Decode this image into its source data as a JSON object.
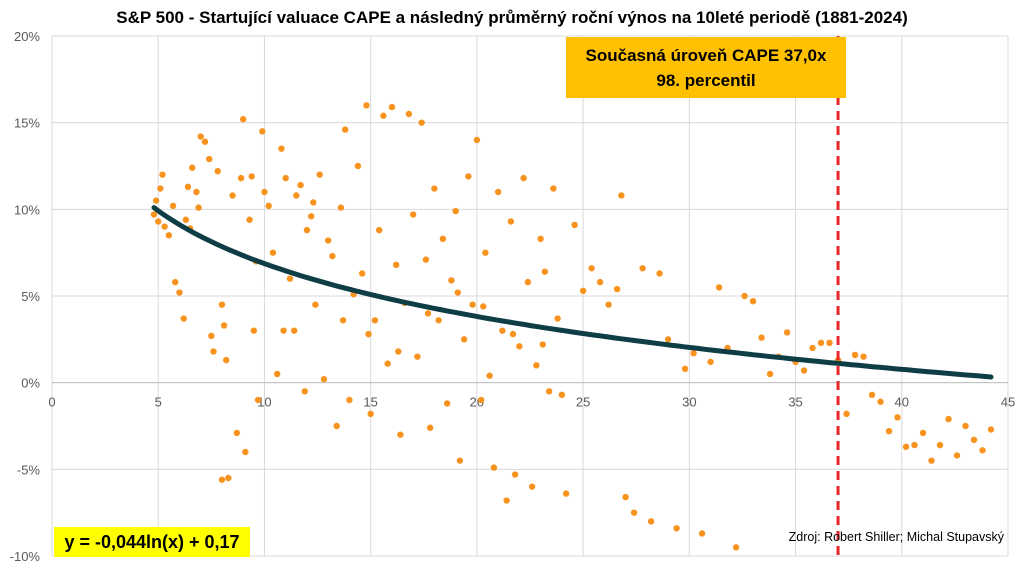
{
  "chart_data": {
    "type": "scatter",
    "title": "S&P 500 - Startující valuace CAPE a následný průměrný roční výnos na 10leté periodě (1881-2024)",
    "xlim": [
      0,
      45
    ],
    "ylim": [
      -0.1,
      0.2
    ],
    "x_ticks": [
      0,
      5,
      10,
      15,
      20,
      25,
      30,
      35,
      40,
      45
    ],
    "x_tick_labels": [
      "0",
      "5",
      "10",
      "15",
      "20",
      "25",
      "30",
      "35",
      "40",
      "45"
    ],
    "y_ticks": [
      -0.1,
      -0.05,
      0.0,
      0.05,
      0.1,
      0.15,
      0.2
    ],
    "y_tick_labels": [
      "-10%",
      "-5%",
      "0%",
      "5%",
      "10%",
      "15%",
      "20%"
    ],
    "grid": "vertical and horizontal gridlines",
    "colors": {
      "points": "#f7931e",
      "trendline": "#0f3d46",
      "current_line": "#e8262b",
      "annotation_bg": "#ffc000",
      "equation_bg": "#ffff00",
      "grid": "#d9d9d9"
    },
    "trendline": {
      "formula": "y = -0,044ln(x) + 0,17",
      "a": -0.044,
      "b": 0.17,
      "x_range": [
        4.8,
        44.2
      ]
    },
    "current_value": {
      "x": 37.0,
      "label_line1": "Současná úroveň CAPE 37,0x",
      "label_line2": "98. percentil"
    },
    "equation_label": "y = -0,044ln(x) + 0,17",
    "source": "Zdroj: Robert Shiller; Michal Stupavský",
    "series": [
      {
        "points": [
          [
            4.8,
            0.097
          ],
          [
            4.9,
            0.105
          ],
          [
            5.0,
            0.093
          ],
          [
            5.1,
            0.112
          ],
          [
            5.2,
            0.12
          ],
          [
            5.3,
            0.09
          ],
          [
            5.5,
            0.085
          ],
          [
            5.7,
            0.102
          ],
          [
            5.8,
            0.058
          ],
          [
            6.0,
            0.052
          ],
          [
            6.2,
            0.037
          ],
          [
            6.3,
            0.094
          ],
          [
            6.4,
            0.113
          ],
          [
            6.5,
            0.089
          ],
          [
            6.6,
            0.124
          ],
          [
            6.8,
            0.11
          ],
          [
            6.9,
            0.101
          ],
          [
            7.0,
            0.142
          ],
          [
            7.2,
            0.139
          ],
          [
            7.4,
            0.129
          ],
          [
            7.5,
            0.027
          ],
          [
            7.6,
            0.018
          ],
          [
            7.8,
            0.122
          ],
          [
            8.0,
            0.045
          ],
          [
            8.0,
            -0.056
          ],
          [
            8.2,
            0.013
          ],
          [
            8.3,
            -0.055
          ],
          [
            8.5,
            0.108
          ],
          [
            8.7,
            -0.029
          ],
          [
            8.9,
            0.118
          ],
          [
            9.0,
            0.152
          ],
          [
            9.1,
            -0.04
          ],
          [
            9.3,
            0.094
          ],
          [
            9.5,
            0.03
          ],
          [
            9.6,
            0.07
          ],
          [
            9.7,
            -0.01
          ],
          [
            9.9,
            0.145
          ],
          [
            10.0,
            0.11
          ],
          [
            10.2,
            0.102
          ],
          [
            10.4,
            0.075
          ],
          [
            10.6,
            0.005
          ],
          [
            10.8,
            0.135
          ],
          [
            11.0,
            0.118
          ],
          [
            11.2,
            0.06
          ],
          [
            11.4,
            0.03
          ],
          [
            11.5,
            0.108
          ],
          [
            11.7,
            0.114
          ],
          [
            11.9,
            -0.005
          ],
          [
            12.0,
            0.088
          ],
          [
            12.2,
            0.096
          ],
          [
            12.4,
            0.045
          ],
          [
            12.6,
            0.12
          ],
          [
            12.8,
            0.002
          ],
          [
            13.0,
            0.082
          ],
          [
            13.2,
            0.073
          ],
          [
            13.4,
            -0.025
          ],
          [
            13.6,
            0.101
          ],
          [
            13.8,
            0.146
          ],
          [
            14.0,
            -0.01
          ],
          [
            14.2,
            0.051
          ],
          [
            14.4,
            0.125
          ],
          [
            14.6,
            0.063
          ],
          [
            14.8,
            0.16
          ],
          [
            15.0,
            -0.018
          ],
          [
            15.2,
            0.036
          ],
          [
            15.4,
            0.088
          ],
          [
            15.6,
            0.154
          ],
          [
            15.8,
            0.011
          ],
          [
            16.0,
            0.159
          ],
          [
            16.2,
            0.068
          ],
          [
            16.4,
            -0.03
          ],
          [
            16.6,
            0.046
          ],
          [
            16.8,
            0.155
          ],
          [
            17.0,
            0.097
          ],
          [
            17.2,
            0.015
          ],
          [
            17.4,
            0.15
          ],
          [
            17.6,
            0.071
          ],
          [
            17.8,
            -0.026
          ],
          [
            18.0,
            0.112
          ],
          [
            18.2,
            0.036
          ],
          [
            18.4,
            0.083
          ],
          [
            18.6,
            -0.012
          ],
          [
            18.8,
            0.059
          ],
          [
            19.0,
            0.099
          ],
          [
            19.2,
            -0.045
          ],
          [
            19.4,
            0.025
          ],
          [
            19.6,
            0.119
          ],
          [
            19.8,
            0.045
          ],
          [
            20.0,
            0.14
          ],
          [
            20.2,
            -0.01
          ],
          [
            20.4,
            0.075
          ],
          [
            20.6,
            0.004
          ],
          [
            20.8,
            -0.049
          ],
          [
            21.0,
            0.11
          ],
          [
            21.2,
            0.03
          ],
          [
            21.4,
            -0.068
          ],
          [
            21.6,
            0.093
          ],
          [
            21.8,
            -0.053
          ],
          [
            22.0,
            0.021
          ],
          [
            22.2,
            0.118
          ],
          [
            22.4,
            0.058
          ],
          [
            22.6,
            -0.06
          ],
          [
            22.8,
            0.01
          ],
          [
            23.0,
            0.083
          ],
          [
            23.2,
            0.064
          ],
          [
            23.4,
            -0.005
          ],
          [
            23.6,
            0.112
          ],
          [
            23.8,
            0.037
          ],
          [
            24.0,
            -0.007
          ],
          [
            24.2,
            -0.064
          ],
          [
            24.6,
            0.091
          ],
          [
            25.0,
            0.053
          ],
          [
            25.4,
            0.066
          ],
          [
            25.8,
            0.058
          ],
          [
            26.2,
            0.045
          ],
          [
            26.6,
            0.054
          ],
          [
            26.8,
            0.108
          ],
          [
            27.0,
            -0.066
          ],
          [
            27.4,
            -0.075
          ],
          [
            27.8,
            0.066
          ],
          [
            28.2,
            -0.08
          ],
          [
            28.6,
            0.063
          ],
          [
            29.0,
            0.025
          ],
          [
            29.4,
            -0.084
          ],
          [
            29.8,
            0.008
          ],
          [
            30.2,
            0.017
          ],
          [
            30.6,
            -0.087
          ],
          [
            31.0,
            0.012
          ],
          [
            31.4,
            0.055
          ],
          [
            31.8,
            0.02
          ],
          [
            32.2,
            -0.095
          ],
          [
            32.6,
            0.05
          ],
          [
            33.0,
            0.047
          ],
          [
            33.4,
            0.026
          ],
          [
            33.8,
            0.005
          ],
          [
            34.2,
            0.015
          ],
          [
            34.6,
            0.029
          ],
          [
            35.0,
            0.012
          ],
          [
            35.4,
            0.007
          ],
          [
            35.8,
            0.02
          ],
          [
            36.2,
            0.023
          ],
          [
            36.6,
            0.023
          ],
          [
            37.0,
            0.013
          ],
          [
            37.4,
            -0.018
          ],
          [
            37.8,
            0.016
          ],
          [
            38.2,
            0.015
          ],
          [
            38.6,
            -0.007
          ],
          [
            39.0,
            -0.011
          ],
          [
            39.4,
            -0.028
          ],
          [
            39.8,
            -0.02
          ],
          [
            40.2,
            -0.037
          ],
          [
            40.6,
            -0.036
          ],
          [
            41.0,
            -0.029
          ],
          [
            41.4,
            -0.045
          ],
          [
            41.8,
            -0.036
          ],
          [
            42.2,
            -0.021
          ],
          [
            42.6,
            -0.042
          ],
          [
            43.0,
            -0.025
          ],
          [
            43.4,
            -0.033
          ],
          [
            43.8,
            -0.039
          ],
          [
            44.2,
            -0.027
          ],
          [
            8.1,
            0.033
          ],
          [
            9.4,
            0.119
          ],
          [
            10.9,
            0.03
          ],
          [
            12.3,
            0.104
          ],
          [
            13.7,
            0.036
          ],
          [
            14.9,
            0.028
          ],
          [
            16.3,
            0.018
          ],
          [
            17.7,
            0.04
          ],
          [
            19.1,
            0.052
          ],
          [
            20.3,
            0.044
          ],
          [
            21.7,
            0.028
          ],
          [
            23.1,
            0.022
          ]
        ]
      }
    ]
  }
}
